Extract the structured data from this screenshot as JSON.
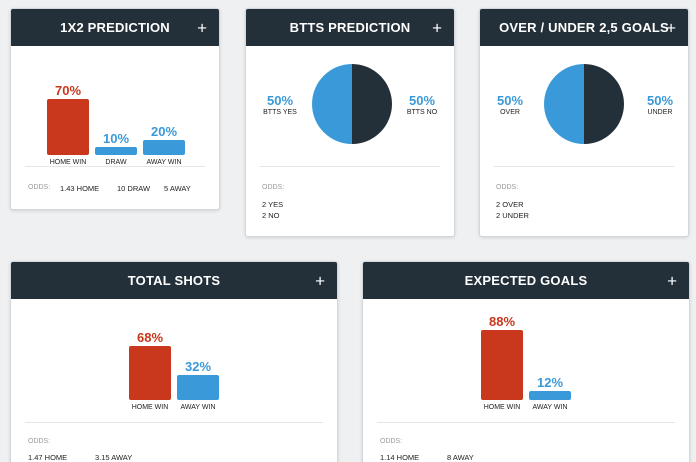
{
  "cards": {
    "c1x2": {
      "title": "1X2 PREDICTION",
      "bars": [
        {
          "pct": "70%",
          "label": "HOME WIN",
          "value": 70,
          "color": "#c9371d"
        },
        {
          "pct": "10%",
          "label": "DRAW",
          "value": 10,
          "color": "#3a9ad9"
        },
        {
          "pct": "20%",
          "label": "AWAY WIN",
          "value": 20,
          "color": "#3a9ad9"
        }
      ],
      "odds_label": "ODDS:",
      "odds": [
        "1.43 HOME",
        "10 DRAW",
        "5 AWAY"
      ]
    },
    "btts": {
      "title": "BTTS PREDICTION",
      "left_pct": "50%",
      "left_label": "BTTS YES",
      "right_pct": "50%",
      "right_label": "BTTS NO",
      "pie_value": 50,
      "odds_label": "ODDS:",
      "odds": [
        "2 YES",
        "2 NO"
      ]
    },
    "ou": {
      "title": "OVER / UNDER 2,5 GOALS",
      "left_pct": "50%",
      "left_label": "OVER",
      "right_pct": "50%",
      "right_label": "UNDER",
      "pie_value": 50,
      "odds_label": "ODDS:",
      "odds": [
        "2 OVER",
        "2 UNDER"
      ]
    },
    "shots": {
      "title": "TOTAL SHOTS",
      "bars": [
        {
          "pct": "68%",
          "label": "HOME WIN",
          "value": 68,
          "color": "#c9371d"
        },
        {
          "pct": "32%",
          "label": "AWAY WIN",
          "value": 32,
          "color": "#3a9ad9"
        }
      ],
      "odds_label": "ODDS:",
      "odds": [
        "1.47 HOME",
        "3.15 AWAY"
      ]
    },
    "xg": {
      "title": "EXPECTED GOALS",
      "bars": [
        {
          "pct": "88%",
          "label": "HOME WIN",
          "value": 88,
          "color": "#c9371d"
        },
        {
          "pct": "12%",
          "label": "AWAY WIN",
          "value": 12,
          "color": "#3a9ad9"
        }
      ],
      "odds_label": "ODDS:",
      "odds": [
        "1.14 HOME",
        "8 AWAY"
      ]
    }
  },
  "expand_symbol": "+",
  "colors": {
    "header": "#23303a",
    "home": "#c9371d",
    "away": "#3a9ad9",
    "pie_dark": "#23303a"
  }
}
